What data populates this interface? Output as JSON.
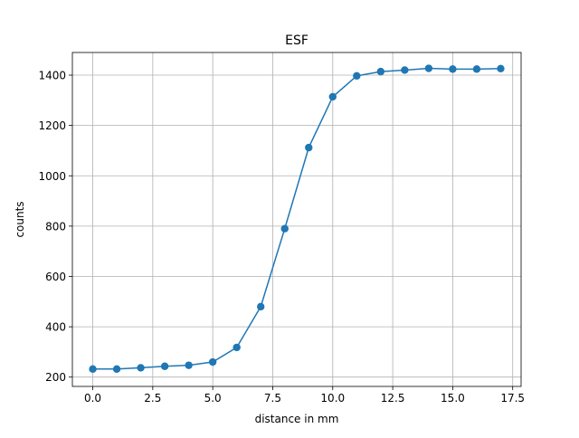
{
  "chart_data": {
    "type": "line",
    "title": "ESF",
    "xlabel": "distance in mm",
    "ylabel": "counts",
    "xlim": [
      -0.85,
      17.85
    ],
    "ylim": [
      163,
      1490
    ],
    "xticks": [
      0.0,
      2.5,
      5.0,
      7.5,
      10.0,
      12.5,
      15.0,
      17.5
    ],
    "xtick_labels": [
      "0.0",
      "2.5",
      "5.0",
      "7.5",
      "10.0",
      "12.5",
      "15.0",
      "17.5"
    ],
    "yticks": [
      200,
      400,
      600,
      800,
      1000,
      1200,
      1400
    ],
    "ytick_labels": [
      "200",
      "400",
      "600",
      "800",
      "1000",
      "1200",
      "1400"
    ],
    "grid": true,
    "legend": "none",
    "series": [
      {
        "color": "#1f77b4",
        "marker": "circle",
        "x": [
          0,
          1,
          2,
          3,
          4,
          5,
          6,
          7,
          8,
          9,
          10,
          11,
          12,
          13,
          14,
          15,
          16,
          17
        ],
        "y": [
          232,
          232,
          237,
          243,
          247,
          260,
          318,
          480,
          790,
          1112,
          1314,
          1397,
          1414,
          1420,
          1427,
          1424,
          1424,
          1426
        ]
      }
    ]
  }
}
